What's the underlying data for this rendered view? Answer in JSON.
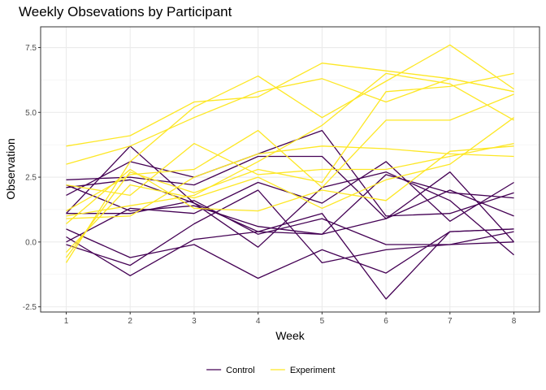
{
  "chart_data": {
    "type": "line",
    "title": "Weekly Obsevations by Participant",
    "xlabel": "Week",
    "ylabel": "Observation",
    "x": [
      1,
      2,
      3,
      4,
      5,
      6,
      7,
      8
    ],
    "xlim": [
      0.6,
      8.4
    ],
    "ylim": [
      -2.7,
      8.3
    ],
    "y_ticks": [
      -2.5,
      0,
      2.5,
      5,
      7.5
    ],
    "y_tick_labels": [
      "-2.5",
      "0.0",
      "2.5",
      "5.0",
      "7.5"
    ],
    "x_tick_labels": [
      "1",
      "2",
      "3",
      "4",
      "5",
      "6",
      "7",
      "8"
    ],
    "grid": true,
    "legend_position": "bottom",
    "groups": [
      {
        "name": "Control",
        "color": "#440154"
      },
      {
        "name": "Experiment",
        "color": "#FDE725"
      }
    ],
    "series": [
      {
        "group": "Control",
        "values": [
          0.2,
          -1.3,
          0.1,
          0.4,
          1.1,
          -2.2,
          0.4,
          0.5
        ]
      },
      {
        "group": "Control",
        "values": [
          1.1,
          3.7,
          1.5,
          -0.2,
          2.1,
          2.7,
          1.6,
          -0.5
        ]
      },
      {
        "group": "Control",
        "values": [
          2.4,
          2.5,
          2.2,
          3.3,
          3.3,
          0.9,
          2.7,
          0.0
        ]
      },
      {
        "group": "Control",
        "values": [
          0.5,
          -0.6,
          -0.1,
          -1.4,
          -0.3,
          -1.2,
          0.4,
          0.5
        ]
      },
      {
        "group": "Control",
        "values": [
          2.2,
          1.2,
          1.4,
          0.6,
          0.3,
          2.6,
          1.9,
          1.7
        ]
      },
      {
        "group": "Control",
        "values": [
          1.8,
          3.1,
          2.5,
          3.4,
          4.3,
          1.0,
          1.1,
          1.9
        ]
      },
      {
        "group": "Control",
        "values": [
          0.0,
          1.3,
          1.1,
          2.3,
          1.5,
          3.1,
          0.8,
          2.3
        ]
      },
      {
        "group": "Control",
        "values": [
          -0.1,
          -0.9,
          0.7,
          2.0,
          -0.8,
          -0.3,
          -0.1,
          0.4
        ]
      },
      {
        "group": "Control",
        "values": [
          1.1,
          1.1,
          1.6,
          0.3,
          0.9,
          -0.1,
          -0.1,
          0.0
        ]
      },
      {
        "group": "Control",
        "values": [
          2.1,
          2.4,
          1.5,
          0.4,
          0.3,
          0.9,
          2.0,
          1.0
        ]
      },
      {
        "group": "Experiment",
        "values": [
          3.7,
          4.1,
          5.4,
          5.6,
          6.9,
          6.6,
          6.3,
          5.8
        ]
      },
      {
        "group": "Experiment",
        "values": [
          3.0,
          3.7,
          4.8,
          5.8,
          6.3,
          5.4,
          6.3,
          5.8
        ]
      },
      {
        "group": "Experiment",
        "values": [
          -0.8,
          3.1,
          5.2,
          6.4,
          4.8,
          6.2,
          7.6,
          5.9
        ]
      },
      {
        "group": "Experiment",
        "values": [
          1.2,
          2.6,
          2.8,
          4.3,
          2.1,
          4.7,
          4.7,
          5.7
        ]
      },
      {
        "group": "Experiment",
        "values": [
          0.9,
          1.0,
          2.5,
          3.4,
          3.7,
          3.6,
          3.4,
          3.3
        ]
      },
      {
        "group": "Experiment",
        "values": [
          2.2,
          1.8,
          3.8,
          2.6,
          2.8,
          2.8,
          3.3,
          3.8
        ]
      },
      {
        "group": "Experiment",
        "values": [
          0.7,
          2.8,
          1.3,
          1.2,
          2.0,
          1.6,
          3.5,
          3.7
        ]
      },
      {
        "group": "Experiment",
        "values": [
          -0.6,
          2.7,
          1.9,
          2.8,
          2.3,
          5.8,
          6.0,
          6.5
        ]
      },
      {
        "group": "Experiment",
        "values": [
          1.0,
          1.4,
          1.8,
          3.1,
          4.5,
          6.5,
          6.1,
          4.7
        ]
      },
      {
        "group": "Experiment",
        "values": [
          -0.4,
          2.2,
          1.7,
          2.5,
          1.3,
          2.4,
          3.0,
          4.8
        ]
      }
    ]
  }
}
